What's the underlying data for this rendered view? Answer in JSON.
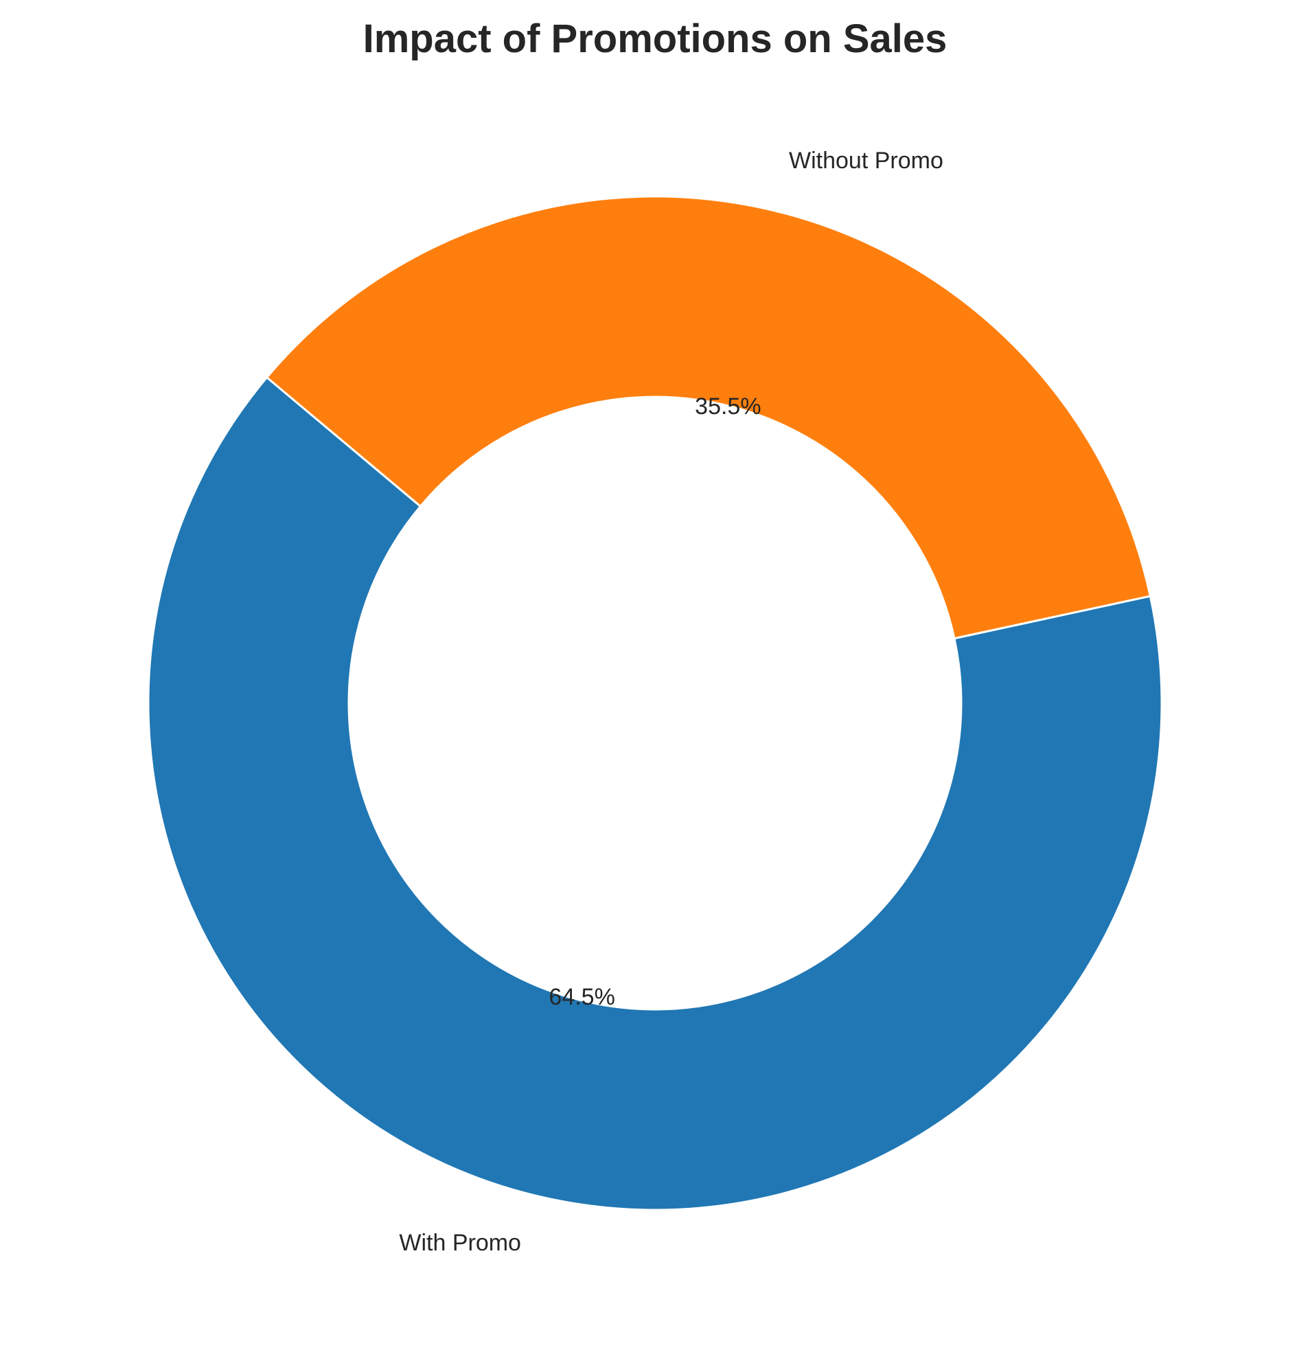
{
  "chart_data": {
    "type": "pie",
    "variant": "donut",
    "title": "Impact of Promotions on Sales",
    "legend": "none",
    "slices": [
      {
        "label": "With Promo",
        "value": 64.5,
        "pct_label": "64.5%",
        "color": "#2077b4"
      },
      {
        "label": "Without Promo",
        "value": 35.5,
        "pct_label": "35.5%",
        "color": "#ff7f0e"
      }
    ]
  },
  "colors": {
    "background": "#ffffff",
    "text": "#262626",
    "slice_edge": "#ffffff"
  }
}
